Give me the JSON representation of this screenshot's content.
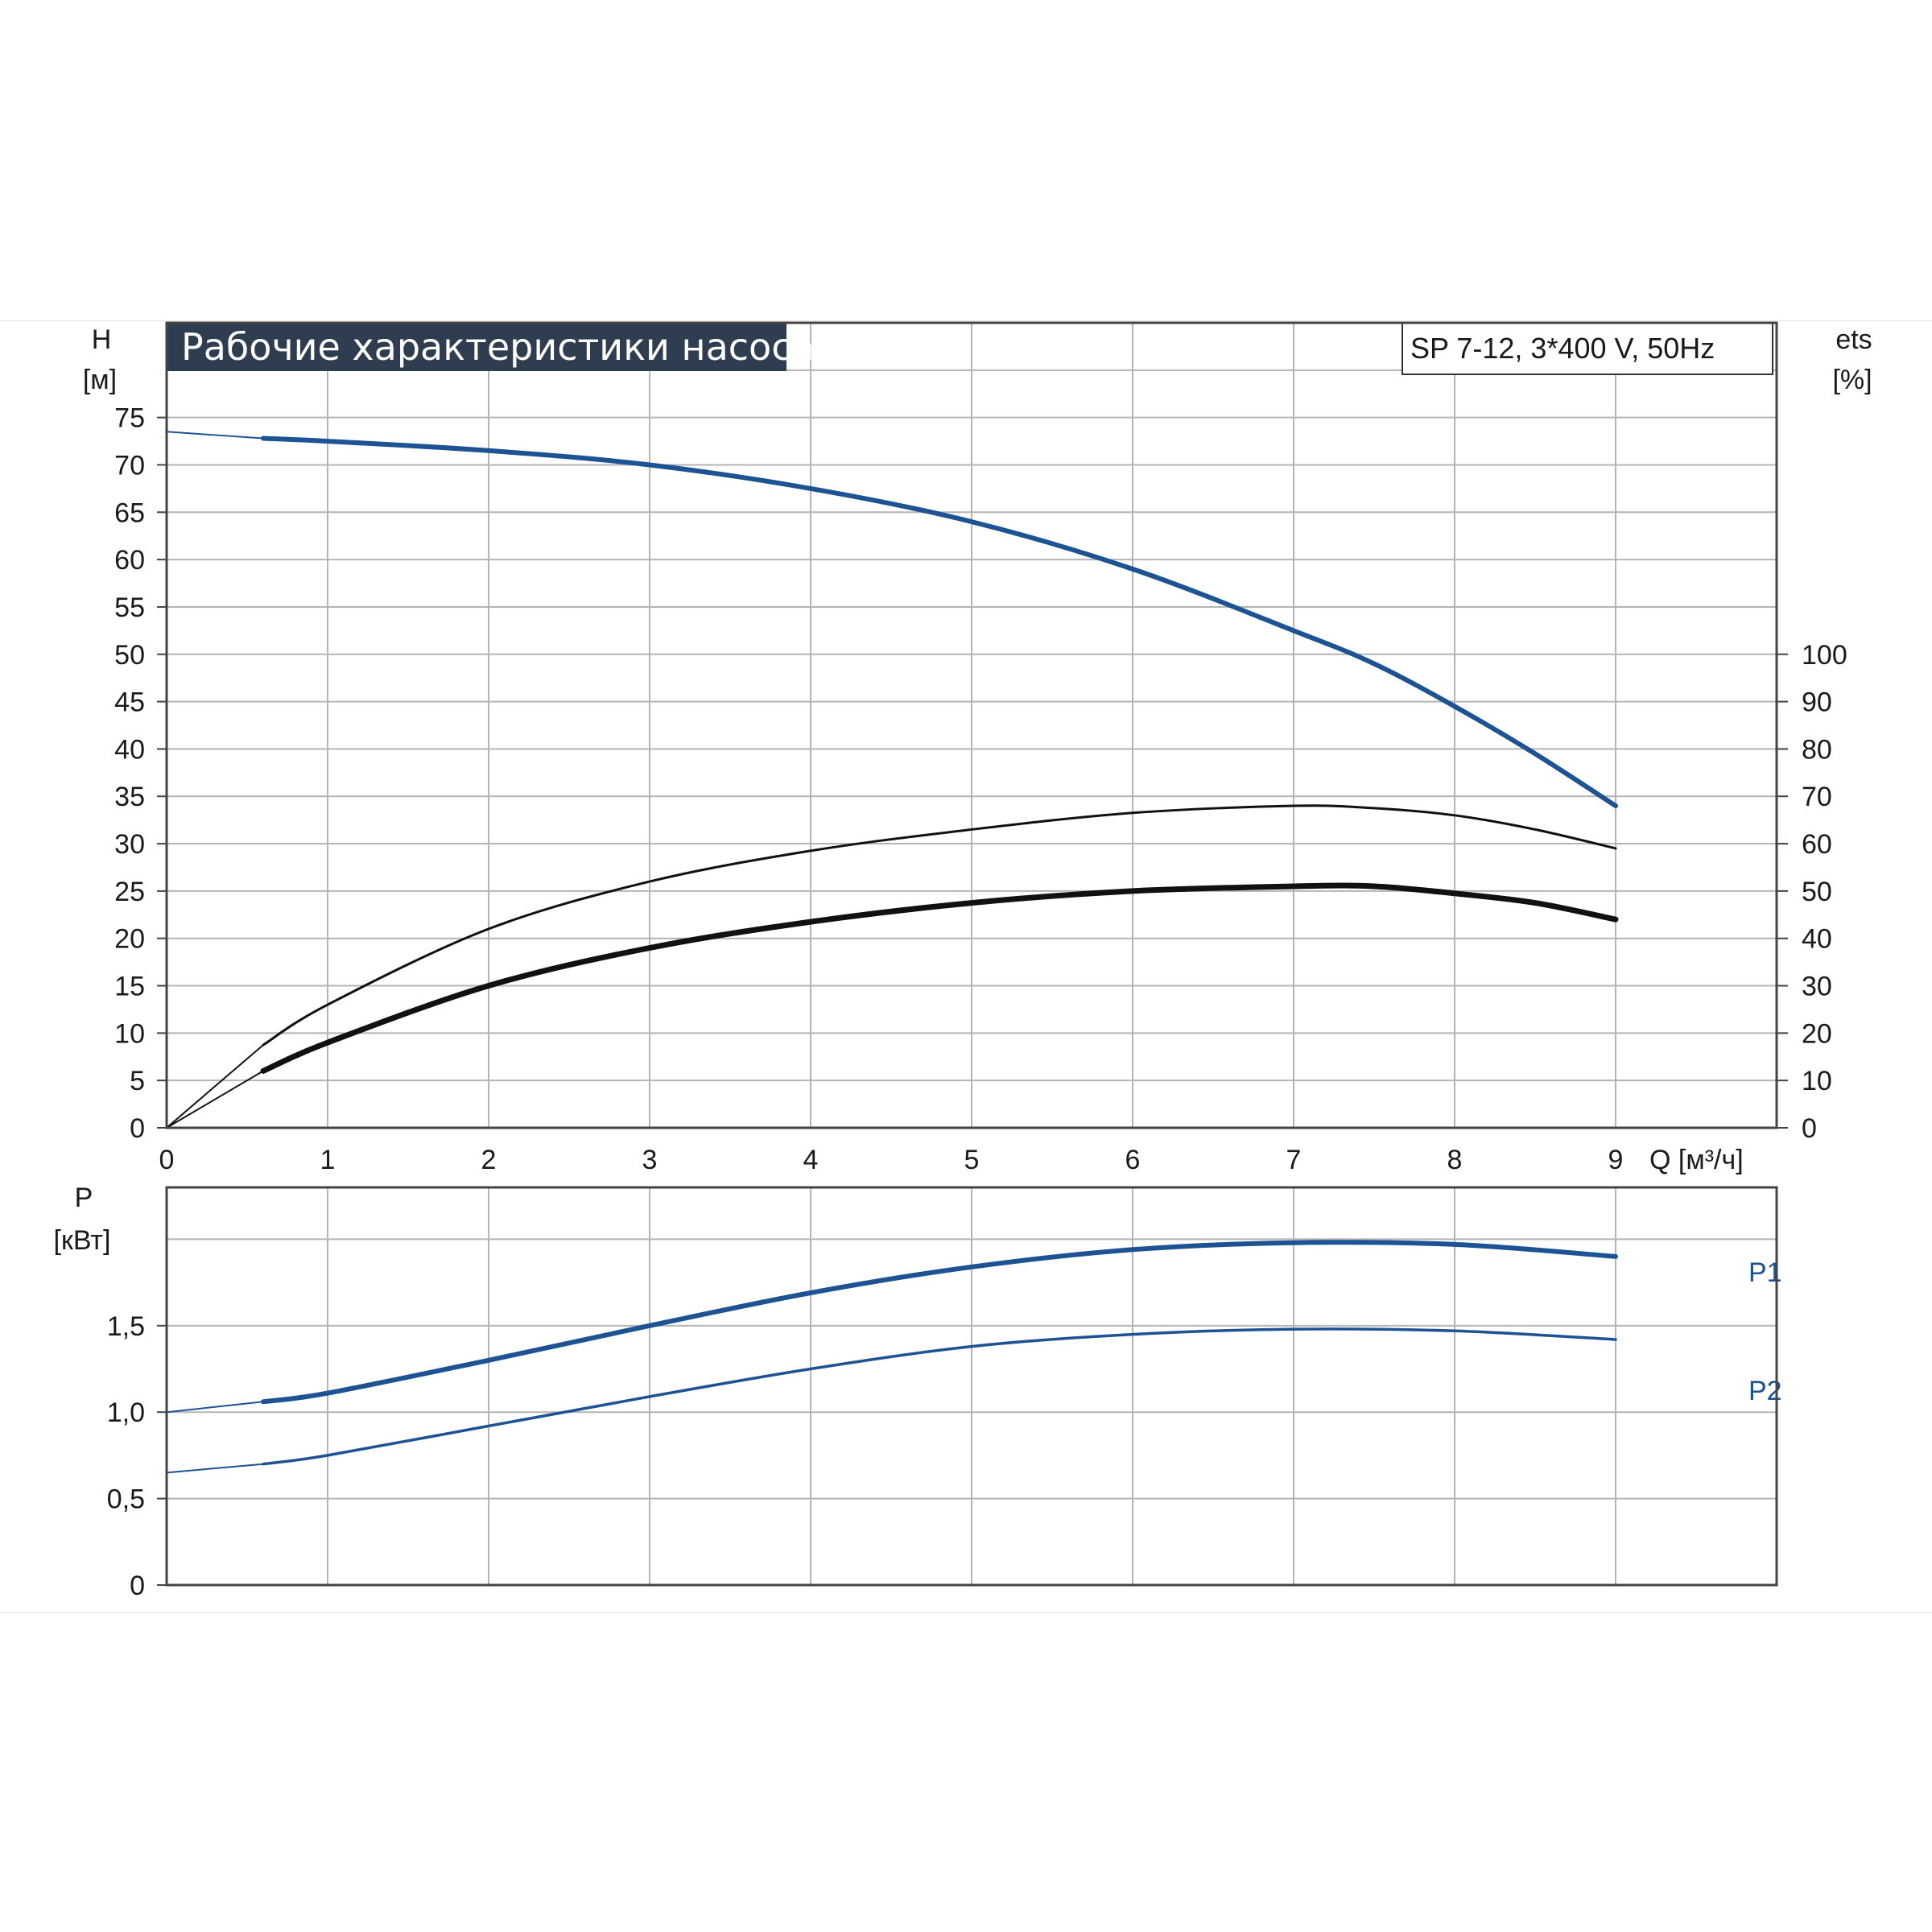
{
  "title": "Рабочие характеристики насоса",
  "model": "SP 7-12, 3*400 V, 50Hz",
  "colors": {
    "curve_blue": "#1d5293",
    "curve_black": "#111111",
    "title_bg": "#2f3d51",
    "grid": "#b4b4b4"
  },
  "chart_data": [
    {
      "type": "line",
      "title": "Рабочие характеристики насоса",
      "subtitle": "SP 7-12, 3*400 V, 50Hz",
      "x_label": "Q [м³/ч]",
      "x_ticks": [
        "0",
        "1",
        "2",
        "3",
        "4",
        "5",
        "6",
        "7",
        "8",
        "9"
      ],
      "xlim": [
        0,
        10
      ],
      "y_left_label": [
        "H",
        "[м]"
      ],
      "y_left_ticks": [
        "0",
        "5",
        "10",
        "15",
        "20",
        "25",
        "30",
        "35",
        "40",
        "45",
        "50",
        "55",
        "60",
        "65",
        "70",
        "75"
      ],
      "y_left_lim": [
        0,
        85
      ],
      "y_right_label": [
        "ets",
        "[%]"
      ],
      "y_right_ticks": [
        "0",
        "10",
        "20",
        "30",
        "40",
        "50",
        "60",
        "70",
        "80",
        "90",
        "100"
      ],
      "y_right_lim": [
        0,
        170
      ],
      "grid": true,
      "series": [
        {
          "axis": "left",
          "color": "#1d5293",
          "x": [
            0,
            0.6,
            1,
            2,
            3,
            4,
            5,
            6,
            7,
            7.5,
            8,
            8.5,
            9
          ],
          "y": [
            73.5,
            72.8,
            72.5,
            71.5,
            70.0,
            67.5,
            64.0,
            59.0,
            52.5,
            49.0,
            44.5,
            39.5,
            34.0
          ]
        },
        {
          "axis": "right",
          "color": "#111111",
          "x": [
            0,
            0.6,
            1,
            2,
            3,
            4,
            5,
            6,
            7,
            7.5,
            8,
            8.5,
            9
          ],
          "y": [
            0,
            17.5,
            26,
            42,
            52,
            58.5,
            63,
            66.5,
            68,
            67.5,
            66,
            63,
            59
          ]
        },
        {
          "axis": "right",
          "color": "#111111",
          "x": [
            0,
            0.6,
            1,
            2,
            3,
            4,
            5,
            6,
            7,
            7.5,
            8,
            8.5,
            9
          ],
          "y": [
            0,
            12,
            18,
            30,
            38,
            43.5,
            47.5,
            50,
            51,
            51,
            49.5,
            47.5,
            44
          ]
        }
      ]
    },
    {
      "type": "line",
      "x_ticks": [],
      "xlim": [
        0,
        10
      ],
      "y_label": [
        "P",
        "[кВт]"
      ],
      "y_ticks": [
        "0",
        "0,5",
        "1,0",
        "1,5"
      ],
      "ylim": [
        0,
        2.3
      ],
      "grid": true,
      "series": [
        {
          "name": "P1",
          "color": "#1d5293",
          "x": [
            0,
            0.6,
            1,
            2,
            3,
            4,
            5,
            6,
            7,
            8,
            9
          ],
          "y": [
            1.0,
            1.06,
            1.11,
            1.3,
            1.5,
            1.69,
            1.84,
            1.94,
            1.98,
            1.97,
            1.9
          ]
        },
        {
          "name": "P2",
          "color": "#1d5293",
          "x": [
            0,
            0.6,
            1,
            2,
            3,
            4,
            5,
            6,
            7,
            8,
            9
          ],
          "y": [
            0.65,
            0.7,
            0.75,
            0.92,
            1.09,
            1.25,
            1.38,
            1.45,
            1.48,
            1.47,
            1.42
          ]
        }
      ]
    }
  ]
}
